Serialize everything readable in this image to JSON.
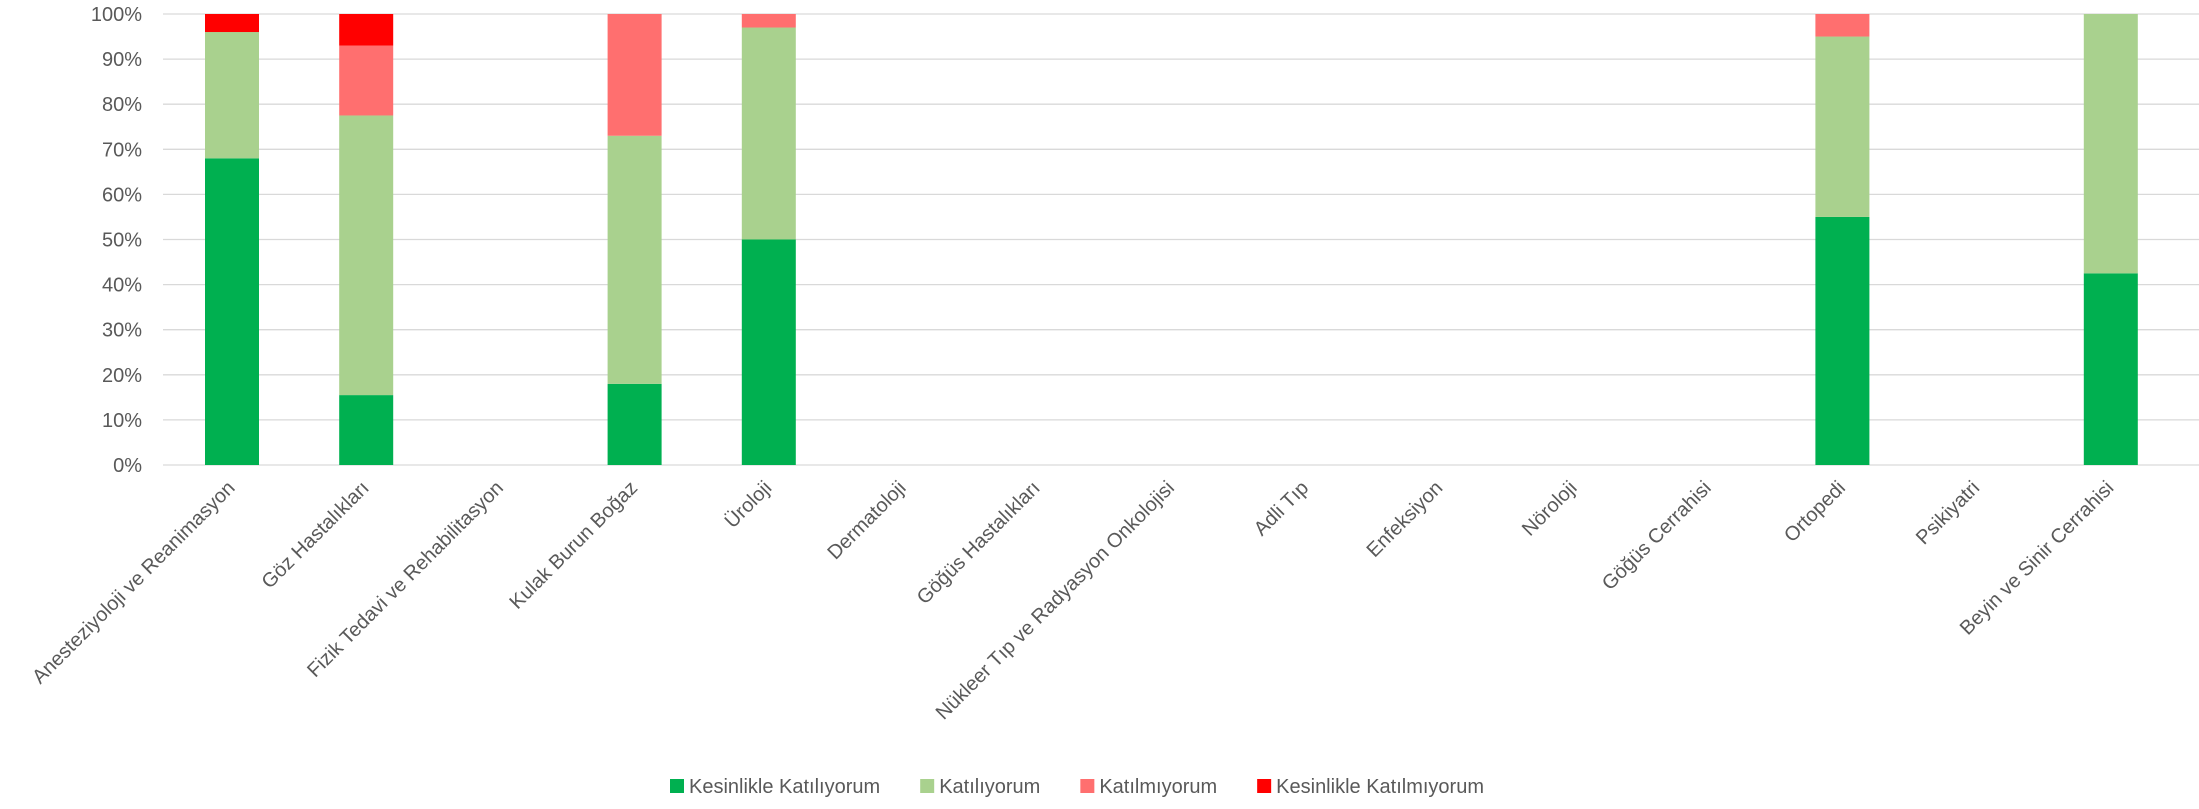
{
  "chart_data": {
    "type": "bar",
    "stacked": true,
    "percent": true,
    "title": "",
    "xlabel": "",
    "ylabel": "",
    "ylim": [
      0,
      100
    ],
    "yticks": [
      "0%",
      "10%",
      "20%",
      "30%",
      "40%",
      "50%",
      "60%",
      "70%",
      "80%",
      "90%",
      "100%"
    ],
    "grid": true,
    "legend_position": "bottom",
    "categories": [
      "Anesteziyoloji ve Reanimasyon",
      "Göz Hastalıkları",
      "Fizik Tedavi ve Rehabilitasyon",
      "Kulak Burun Boğaz",
      "Üroloji",
      "Dermatoloji",
      "Göğüs Hastalıkları",
      "Nükleer Tıp ve Radyasyon Onkolojisi",
      "Adli Tıp",
      "Enfeksiyon",
      "Nöroloji",
      "Göğüs Cerrahisi",
      "Ortopedi",
      "Psikiyatri",
      "Beyin ve Sinir Cerrahisi"
    ],
    "series": [
      {
        "name": "Kesinlikle Katılıyorum",
        "color": "#00b050",
        "values": [
          68,
          15.5,
          0,
          18,
          50,
          0,
          0,
          0,
          0,
          0,
          0,
          0,
          55,
          0,
          42.5
        ]
      },
      {
        "name": "Katılıyorum",
        "color": "#a9d18e",
        "values": [
          28,
          62,
          0,
          55,
          47,
          0,
          0,
          0,
          0,
          0,
          0,
          0,
          40,
          0,
          57.5
        ]
      },
      {
        "name": "Katılmıyorum",
        "color": "#ff6f6f",
        "values": [
          0,
          15.5,
          0,
          27,
          3,
          0,
          0,
          0,
          0,
          0,
          0,
          0,
          5,
          0,
          0
        ]
      },
      {
        "name": "Kesinlikle Katılmıyorum",
        "color": "#ff0000",
        "values": [
          4,
          7,
          0,
          0,
          0,
          0,
          0,
          0,
          0,
          0,
          0,
          0,
          0,
          0,
          0
        ]
      }
    ]
  }
}
